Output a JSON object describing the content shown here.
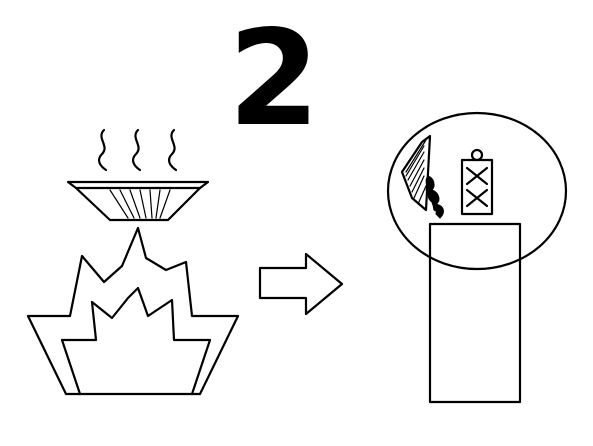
{
  "step": {
    "number": "2"
  },
  "illustration": {
    "left_panel_icons": [
      "steam-icon",
      "heated-bowl-icon",
      "fire-icon"
    ],
    "right_panel_icons": [
      "magnifier-circle-icon",
      "wall-lamp-icon",
      "smoke-icon",
      "person-tag-icon",
      "cabinet-icon"
    ],
    "connector_icon": "right-arrow-icon",
    "colors": {
      "ink": "#000000",
      "paper": "#ffffff"
    }
  }
}
